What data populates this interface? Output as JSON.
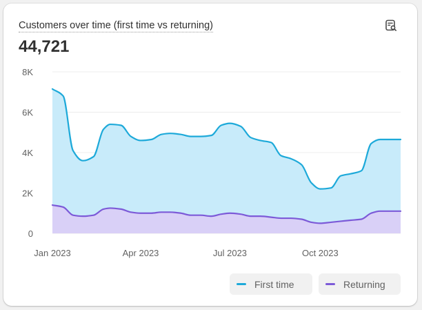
{
  "card": {
    "title": "Customers over time (first time vs returning)",
    "total": "44,721",
    "icon": "analytics-search-icon"
  },
  "chart_data": {
    "type": "area",
    "stacked": true,
    "title": "Customers over time (first time vs returning)",
    "ylim": [
      0,
      8000
    ],
    "yticks": [
      0,
      2000,
      4000,
      6000,
      8000
    ],
    "ytick_labels": [
      "0",
      "2K",
      "4K",
      "6K",
      "8K"
    ],
    "xtick_labels": [
      {
        "label": "Jan 2023",
        "month_index": 0
      },
      {
        "label": "Apr 2023",
        "month_index": 3
      },
      {
        "label": "Jul 2023",
        "month_index": 6
      },
      {
        "label": "Oct 2023",
        "month_index": 9
      }
    ],
    "x": [
      "2023-01-01",
      "2023-01-12",
      "2023-01-22",
      "2023-02-01",
      "2023-02-12",
      "2023-02-22",
      "2023-03-01",
      "2023-03-12",
      "2023-03-22",
      "2023-04-01",
      "2023-04-12",
      "2023-04-22",
      "2023-05-01",
      "2023-05-12",
      "2023-05-22",
      "2023-06-01",
      "2023-06-12",
      "2023-06-22",
      "2023-07-01",
      "2023-07-12",
      "2023-07-22",
      "2023-08-01",
      "2023-08-12",
      "2023-08-22",
      "2023-09-01",
      "2023-09-12",
      "2023-09-22",
      "2023-10-01",
      "2023-10-12",
      "2023-10-22",
      "2023-11-01",
      "2023-11-12",
      "2023-11-22",
      "2023-12-01",
      "2023-12-12",
      "2023-12-22"
    ],
    "series": [
      {
        "name": "First time",
        "color": "#1da9d9",
        "fill": "#c8ebfa",
        "values": [
          7150,
          6800,
          4100,
          3600,
          3800,
          5150,
          5400,
          5350,
          4800,
          4600,
          4650,
          4900,
          4950,
          4900,
          4800,
          4800,
          4850,
          5350,
          5450,
          5300,
          4750,
          4600,
          4500,
          3850,
          3700,
          3400,
          2500,
          2200,
          2250,
          2850,
          2950,
          3100,
          4450,
          4650,
          4650,
          4650
        ]
      },
      {
        "name": "Returning",
        "color": "#7c5ad8",
        "fill": "#d9d0f7",
        "values": [
          1400,
          1300,
          900,
          850,
          900,
          1200,
          1250,
          1200,
          1050,
          1000,
          1000,
          1050,
          1050,
          1000,
          900,
          900,
          850,
          950,
          1000,
          950,
          850,
          850,
          800,
          750,
          750,
          700,
          550,
          500,
          550,
          600,
          650,
          700,
          1000,
          1100,
          1100,
          1100
        ]
      }
    ],
    "legend": {
      "placement": "bottom-right",
      "entries": [
        "First time",
        "Returning"
      ]
    },
    "grid": true
  }
}
